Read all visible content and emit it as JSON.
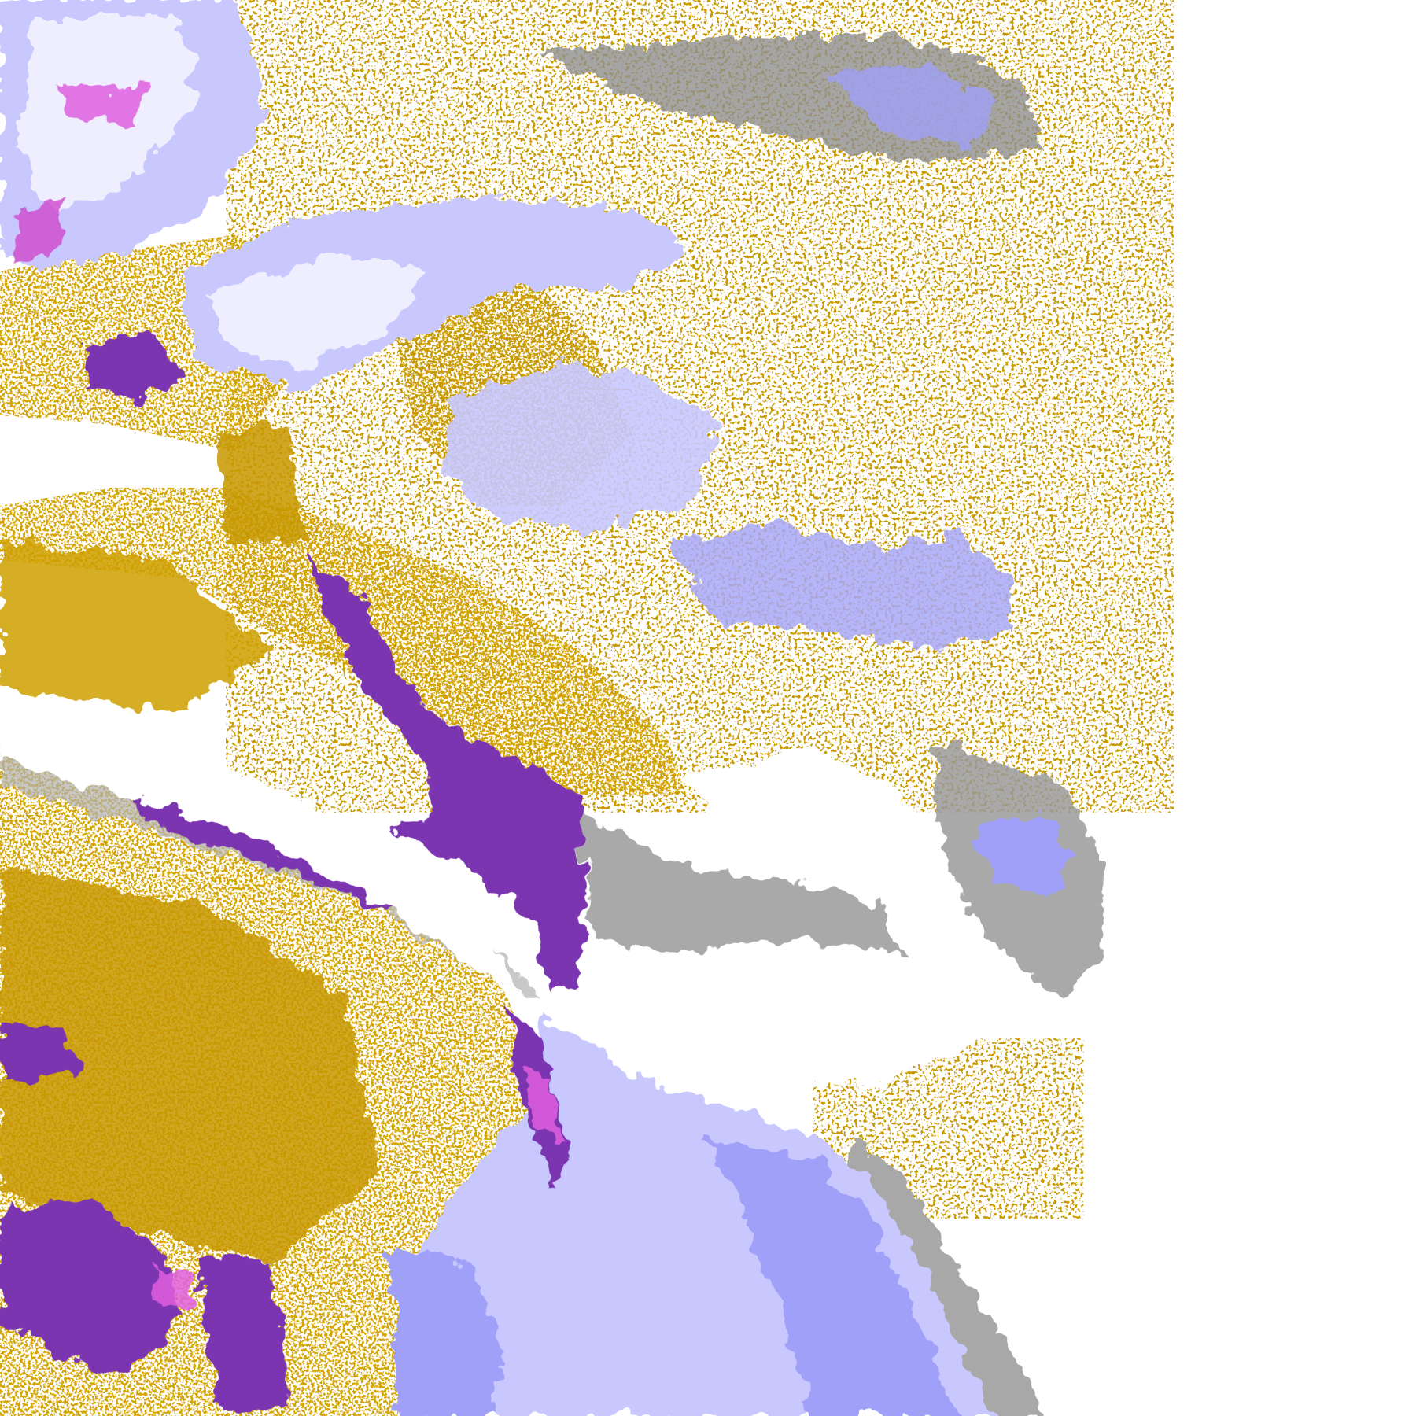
{
  "map": {
    "kind": "satellite cloud-classification imagery",
    "background": "#ffffff",
    "class_colors": {
      "gold": "#d4a400",
      "dark_gold": "#b88a00",
      "purple": "#7b35b0",
      "magenta": "#e060e0",
      "gray": "#8a8a8a",
      "light_gray": "#b0b0b0",
      "periwinkle": "#a0a0f8",
      "lavender": "#c8c8ff",
      "pale": "#eeeeff"
    }
  }
}
